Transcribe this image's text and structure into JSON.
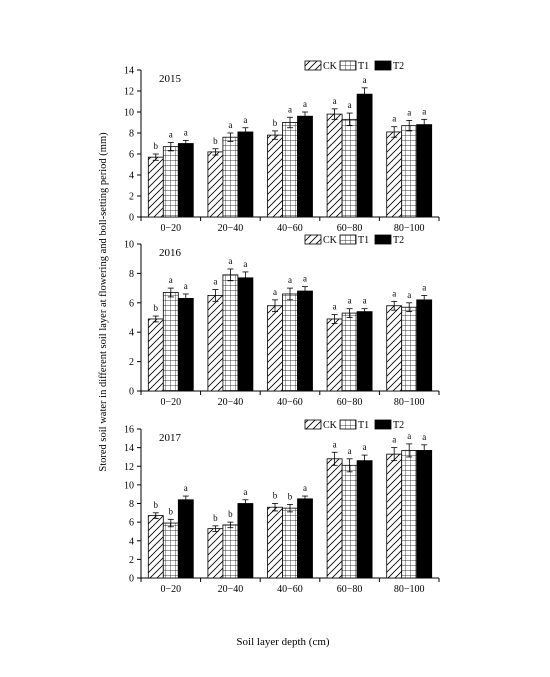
{
  "figure": {
    "ylabel": "Stored soil water in different soil layer at flowering and boll-setting period (mm)",
    "xlabel": "Soil layer depth (cm)"
  },
  "colors": {
    "bar_fill_T2": "#000000",
    "bar_stroke": "#000000",
    "background": "#ffffff"
  },
  "chart_data": [
    {
      "type": "bar",
      "title": "2015",
      "categories": [
        "0−20",
        "20−40",
        "40−60",
        "60−80",
        "80−100"
      ],
      "ylim": [
        0,
        14
      ],
      "yticks": [
        0,
        2,
        4,
        6,
        8,
        10,
        12,
        14
      ],
      "legend_placement": "top-right",
      "series": [
        {
          "name": "CK",
          "pattern": "diagonal-hatch",
          "values": [
            5.7,
            6.2,
            7.8,
            9.8,
            8.1
          ],
          "errors": [
            0.3,
            0.3,
            0.4,
            0.5,
            0.5
          ],
          "labels": [
            "b",
            "b",
            "b",
            "a",
            "a"
          ]
        },
        {
          "name": "T1",
          "pattern": "grid",
          "values": [
            6.7,
            7.6,
            9.0,
            9.3,
            8.7
          ],
          "errors": [
            0.4,
            0.4,
            0.5,
            0.6,
            0.5
          ],
          "labels": [
            "a",
            "a",
            "a",
            "a",
            "a"
          ]
        },
        {
          "name": "T2",
          "pattern": "solid",
          "values": [
            7.0,
            8.1,
            9.6,
            11.7,
            8.8
          ],
          "errors": [
            0.3,
            0.4,
            0.4,
            0.6,
            0.5
          ],
          "labels": [
            "a",
            "a",
            "a",
            "a",
            "a"
          ]
        }
      ]
    },
    {
      "type": "bar",
      "title": "2016",
      "categories": [
        "0−20",
        "20−40",
        "40−60",
        "60−80",
        "80−100"
      ],
      "ylim": [
        0,
        10
      ],
      "yticks": [
        0,
        2,
        4,
        6,
        8,
        10
      ],
      "legend_placement": "top-right",
      "series": [
        {
          "name": "CK",
          "pattern": "diagonal-hatch",
          "values": [
            4.9,
            6.5,
            5.8,
            4.9,
            5.8
          ],
          "errors": [
            0.2,
            0.4,
            0.4,
            0.3,
            0.3
          ],
          "labels": [
            "b",
            "a",
            "a",
            "a",
            "a"
          ]
        },
        {
          "name": "T1",
          "pattern": "grid",
          "values": [
            6.7,
            7.9,
            6.6,
            5.3,
            5.7
          ],
          "errors": [
            0.3,
            0.4,
            0.4,
            0.3,
            0.3
          ],
          "labels": [
            "a",
            "a",
            "a",
            "a",
            "a"
          ]
        },
        {
          "name": "T2",
          "pattern": "solid",
          "values": [
            6.3,
            7.7,
            6.8,
            5.4,
            6.2
          ],
          "errors": [
            0.3,
            0.4,
            0.3,
            0.2,
            0.3
          ],
          "labels": [
            "a",
            "a",
            "a",
            "a",
            "a"
          ]
        }
      ]
    },
    {
      "type": "bar",
      "title": "2017",
      "categories": [
        "0−20",
        "20−40",
        "40−60",
        "60−80",
        "80−100"
      ],
      "ylim": [
        0,
        16
      ],
      "yticks": [
        0,
        2,
        4,
        6,
        8,
        10,
        12,
        14,
        16
      ],
      "legend_placement": "top-right",
      "series": [
        {
          "name": "CK",
          "pattern": "diagonal-hatch",
          "values": [
            6.7,
            5.3,
            7.6,
            12.8,
            13.3
          ],
          "errors": [
            0.3,
            0.3,
            0.4,
            0.7,
            0.7
          ],
          "labels": [
            "b",
            "b",
            "b",
            "a",
            "a"
          ]
        },
        {
          "name": "T1",
          "pattern": "grid",
          "values": [
            5.9,
            5.7,
            7.5,
            12.1,
            13.7
          ],
          "errors": [
            0.4,
            0.3,
            0.4,
            0.7,
            0.7
          ],
          "labels": [
            "b",
            "b",
            "b",
            "a",
            "a"
          ]
        },
        {
          "name": "T2",
          "pattern": "solid",
          "values": [
            8.4,
            8.0,
            8.5,
            12.6,
            13.7
          ],
          "errors": [
            0.4,
            0.4,
            0.3,
            0.6,
            0.6
          ],
          "labels": [
            "a",
            "a",
            "a",
            "a",
            "a"
          ]
        }
      ]
    }
  ]
}
